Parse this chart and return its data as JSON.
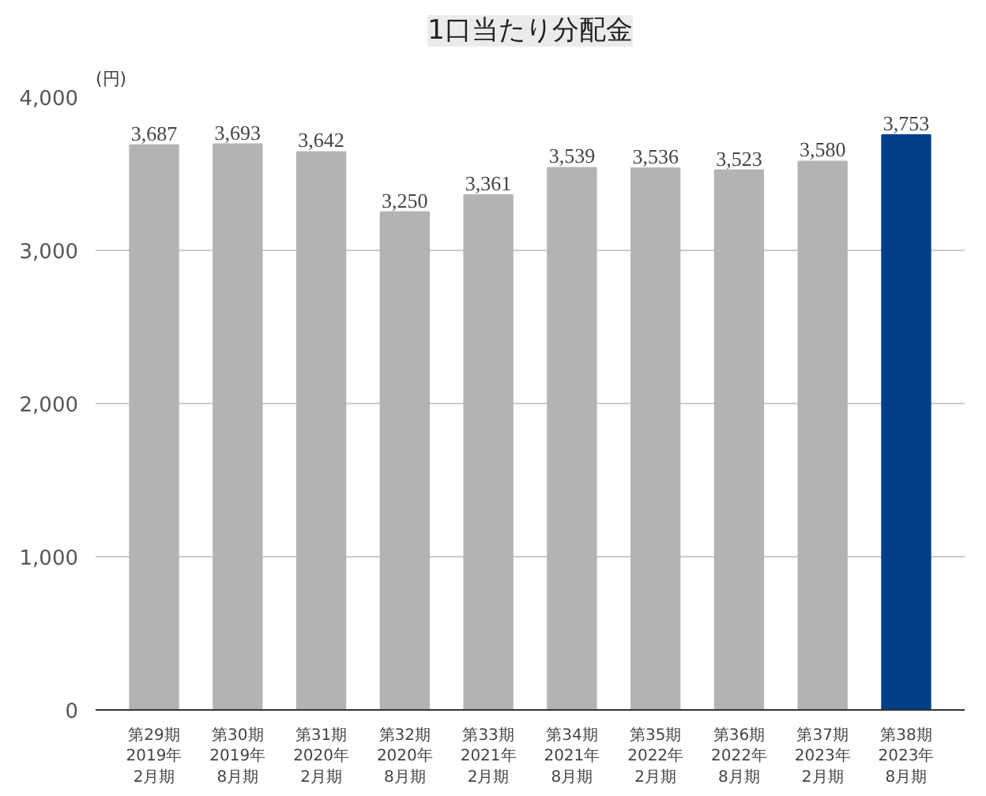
{
  "chart_data": {
    "type": "bar",
    "title": "1口当たり分配金",
    "ylabel": "(円)",
    "categories": [
      "第29期\n2019年\n2月期",
      "第30期\n2019年\n8月期",
      "第31期\n2020年\n2月期",
      "第32期\n2020年\n8月期",
      "第33期\n2021年\n2月期",
      "第34期\n2021年\n8月期",
      "第35期\n2022年\n2月期",
      "第36期\n2022年\n8月期",
      "第37期\n2023年\n2月期",
      "第38期\n2023年\n8月期"
    ],
    "values": [
      3687,
      3693,
      3642,
      3250,
      3361,
      3539,
      3536,
      3523,
      3580,
      3753
    ],
    "colors": [
      "#b3b3b3",
      "#b3b3b3",
      "#b3b3b3",
      "#b3b3b3",
      "#b3b3b3",
      "#b3b3b3",
      "#b3b3b3",
      "#b3b3b3",
      "#b3b3b3",
      "#003f87"
    ],
    "value_labels": [
      "3,687",
      "3,693",
      "3,642",
      "3,250",
      "3,361",
      "3,539",
      "3,536",
      "3,523",
      "3,580",
      "3,753"
    ],
    "ylim": [
      0,
      4000
    ],
    "yticks": [
      {
        "value": 0,
        "label": "0"
      },
      {
        "value": 1000,
        "label": "1,000"
      },
      {
        "value": 2000,
        "label": "2,000"
      },
      {
        "value": 3000,
        "label": "3,000"
      },
      {
        "value": 4000,
        "label": "4,000"
      }
    ],
    "grid": "y"
  }
}
